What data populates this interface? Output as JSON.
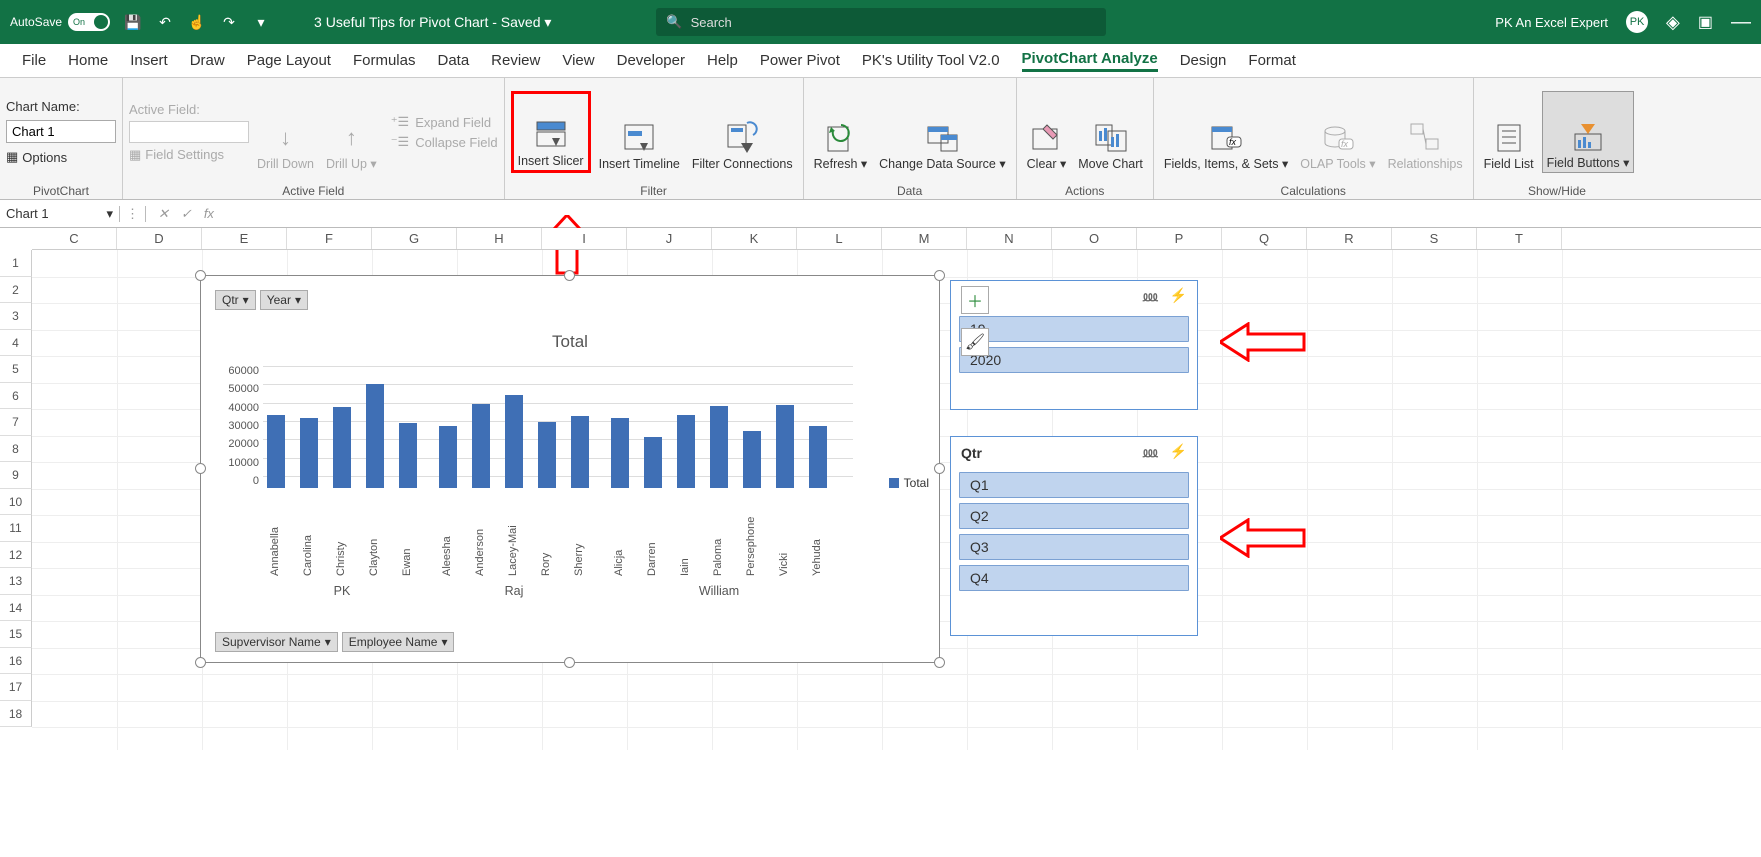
{
  "titlebar": {
    "autosave": "AutoSave",
    "toggle_text": "On",
    "doc_title": "3 Useful Tips for Pivot Chart - Saved ▾",
    "search_placeholder": "Search",
    "user": "PK An Excel Expert"
  },
  "tabs": [
    "File",
    "Home",
    "Insert",
    "Draw",
    "Page Layout",
    "Formulas",
    "Data",
    "Review",
    "View",
    "Developer",
    "Help",
    "Power Pivot",
    "PK's Utility Tool V2.0",
    "PivotChart Analyze",
    "Design",
    "Format"
  ],
  "active_tab": "PivotChart Analyze",
  "ribbon": {
    "chart_name_label": "Chart Name:",
    "chart_name_value": "Chart 1",
    "options": "Options",
    "active_field_label": "Active Field:",
    "field_settings": "Field Settings",
    "drill_down": "Drill\nDown",
    "drill_up": "Drill\nUp ▾",
    "expand_field": "Expand Field",
    "collapse_field": "Collapse Field",
    "insert_slicer": "Insert\nSlicer",
    "insert_timeline": "Insert\nTimeline",
    "filter_connections": "Filter\nConnections",
    "refresh": "Refresh\n▾",
    "change_data_source": "Change Data\nSource ▾",
    "clear": "Clear\n▾",
    "move_chart": "Move\nChart",
    "fields_items_sets": "Fields, Items,\n& Sets ▾",
    "olap_tools": "OLAP\nTools ▾",
    "relationships": "Relationships",
    "field_list": "Field\nList",
    "field_buttons": "Field\nButtons ▾",
    "group_pivotchart": "PivotChart",
    "group_active_field": "Active Field",
    "group_filter": "Filter",
    "group_data": "Data",
    "group_actions": "Actions",
    "group_calculations": "Calculations",
    "group_showhide": "Show/Hide"
  },
  "namebox": "Chart 1",
  "columns": [
    "C",
    "D",
    "E",
    "F",
    "G",
    "H",
    "I",
    "J",
    "K",
    "L",
    "M",
    "N",
    "O",
    "P",
    "Q",
    "R",
    "S",
    "T"
  ],
  "rows": [
    1,
    2,
    3,
    4,
    5,
    6,
    7,
    8,
    9,
    10,
    11,
    12,
    13,
    14,
    15,
    16,
    17,
    18
  ],
  "chart": {
    "title": "Total",
    "qtr_btn": "Qtr",
    "year_btn": "Year",
    "supervisor_btn": "Supvervisor Name",
    "employee_btn": "Employee Name",
    "legend": "Total",
    "y_ticks": [
      60000,
      50000,
      40000,
      30000,
      20000,
      10000,
      0
    ],
    "y_max": 60000,
    "bar_color": "#3f6fb5",
    "groups": [
      {
        "sup": "PK",
        "emp": [
          "Annabella",
          "Carolina",
          "Christy",
          "Clayton",
          "Ewan"
        ],
        "vals": [
          40000,
          38000,
          44000,
          57000,
          35500
        ]
      },
      {
        "sup": "Raj",
        "emp": [
          "Aleesha",
          "Anderson",
          "Lacey-Mai",
          "Rory",
          "Sherry"
        ],
        "vals": [
          34000,
          46000,
          51000,
          36000,
          39500
        ]
      },
      {
        "sup": "William",
        "emp": [
          "Alicja",
          "Darren",
          "Iain",
          "Paloma",
          "Persephone",
          "Vicki",
          "Yehuda"
        ],
        "vals": [
          38000,
          28000,
          40000,
          45000,
          31000,
          45500,
          34000
        ]
      }
    ]
  },
  "slicer_year": {
    "title": "",
    "items": [
      "19",
      "2020"
    ]
  },
  "slicer_qtr": {
    "title": "Qtr",
    "items": [
      "Q1",
      "Q2",
      "Q3",
      "Q4"
    ]
  }
}
